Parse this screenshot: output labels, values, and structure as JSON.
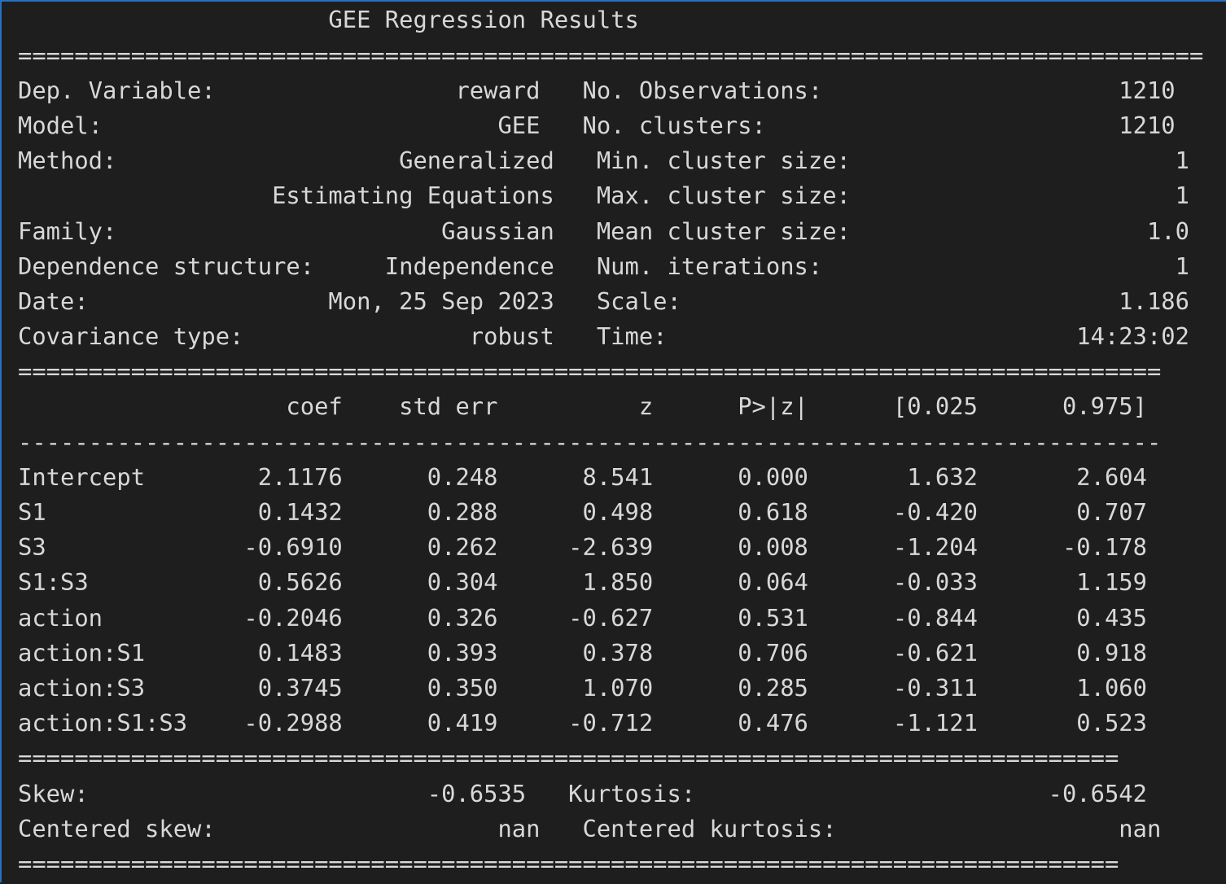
{
  "window": {
    "border_color": "#2f6fb5",
    "background": "#1e1e1e",
    "text_color": "#d8d8d8"
  },
  "output": {
    "lines": [
      "                      GEE Regression Results                        ",
      "====================================================================================",
      "Dep. Variable:                 reward   No. Observations:                     1210",
      "Model:                            GEE   No. clusters:                         1210",
      "Method:                    Generalized   Min. cluster size:                       1",
      "                  Estimating Equations   Max. cluster size:                       1",
      "Family:                       Gaussian   Mean cluster size:                     1.0",
      "Dependence structure:     Independence   Num. iterations:                         1",
      "Date:                 Mon, 25 Sep 2023   Scale:                               1.186",
      "Covariance type:                robust   Time:                             14:23:02",
      "=================================================================================",
      "                   coef    std err          z      P>|z|      [0.025      0.975]",
      "---------------------------------------------------------------------------------",
      "Intercept        2.1176      0.248      8.541      0.000       1.632       2.604",
      "S1               0.1432      0.288      0.498      0.618      -0.420       0.707",
      "S3              -0.6910      0.262     -2.639      0.008      -1.204      -0.178",
      "S1:S3            0.5626      0.304      1.850      0.064      -0.033       1.159",
      "action          -0.2046      0.326     -0.627      0.531      -0.844       0.435",
      "action:S1        0.1483      0.393      0.378      0.706      -0.621       0.918",
      "action:S3        0.3745      0.350      1.070      0.285      -0.311       1.060",
      "action:S1:S3    -0.2988      0.419     -0.712      0.476      -1.121       0.523",
      "==============================================================================",
      "Skew:                        -0.6535   Kurtosis:                         -0.6542",
      "Centered skew:                    nan   Centered kurtosis:                    nan",
      "=============================================================================="
    ]
  }
}
